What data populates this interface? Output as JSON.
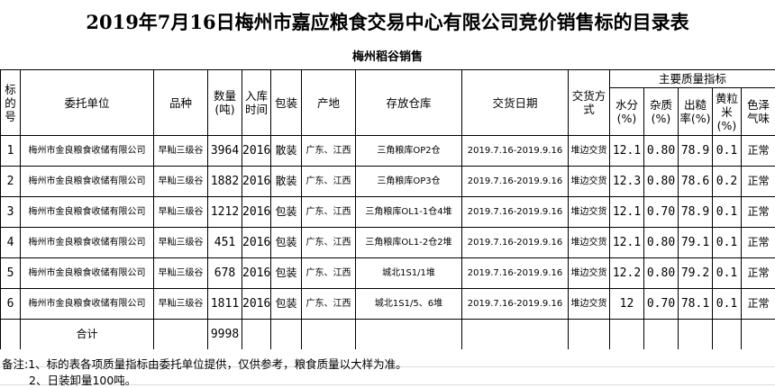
{
  "title": "2019年7月16日梅州市嘉应粮食交易中心有限公司竞价销售标的目录表",
  "subtitle": "梅州稻谷销售",
  "headers": {
    "no": "标的号",
    "unit": "委托单位",
    "variety": "品种",
    "qty": "数量(吨)",
    "year": "入库时间",
    "pack": "包装",
    "origin": "产地",
    "store": "存放仓库",
    "date": "交货日期",
    "method": "交货方式",
    "quality": "主要质量指标",
    "water": "水分(%)",
    "impurity": "杂质(%)",
    "yield": "出糙率(%)",
    "yellow": "黄粒米(%)",
    "color": "色泽气味"
  },
  "rows": [
    {
      "no": "1",
      "unit": "梅州市金良粮食收储有限公司",
      "variety": "早籼三级谷",
      "qty": "3964",
      "year": "2016",
      "pack": "散装",
      "origin": "广东、江西",
      "store": "三角粮库OP2仓",
      "date": "2019.7.16-2019.9.16",
      "method": "堆边交货",
      "water": "12.1",
      "impurity": "0.80",
      "yield": "78.9",
      "yellow": "0.1",
      "color": "正常"
    },
    {
      "no": "2",
      "unit": "梅州市金良粮食收储有限公司",
      "variety": "早籼三级谷",
      "qty": "1882",
      "year": "2016",
      "pack": "散装",
      "origin": "广东、江西",
      "store": "三角粮库OP3仓",
      "date": "2019.7.16-2019.9.16",
      "method": "堆边交货",
      "water": "12.3",
      "impurity": "0.80",
      "yield": "78.6",
      "yellow": "0.2",
      "color": "正常"
    },
    {
      "no": "3",
      "unit": "梅州市金良粮食收储有限公司",
      "variety": "早籼三级谷",
      "qty": "1212",
      "year": "2016",
      "pack": "包装",
      "origin": "广东、江西",
      "store": "三角粮库OL1-1仓4堆",
      "date": "2019.7.16-2019.9.16",
      "method": "堆边交货",
      "water": "12.1",
      "impurity": "0.70",
      "yield": "78.9",
      "yellow": "0.1",
      "color": "正常"
    },
    {
      "no": "4",
      "unit": "梅州市金良粮食收储有限公司",
      "variety": "早籼三级谷",
      "qty": "451",
      "year": "2016",
      "pack": "包装",
      "origin": "广东、江西",
      "store": "三角粮库OL1-2仓2堆",
      "date": "2019.7.16-2019.9.16",
      "method": "堆边交货",
      "water": "12.1",
      "impurity": "0.80",
      "yield": "79.1",
      "yellow": "0.1",
      "color": "正常"
    },
    {
      "no": "5",
      "unit": "梅州市金良粮食收储有限公司",
      "variety": "早籼三级谷",
      "qty": "678",
      "year": "2016",
      "pack": "包装",
      "origin": "广东、江西",
      "store": "城北1S1/1堆",
      "date": "2019.7.16-2019.9.16",
      "method": "堆边交货",
      "water": "12.2",
      "impurity": "0.80",
      "yield": "79.2",
      "yellow": "0.1",
      "color": "正常"
    },
    {
      "no": "6",
      "unit": "梅州市金良粮食收储有限公司",
      "variety": "早籼三级谷",
      "qty": "1811",
      "year": "2016",
      "pack": "包装",
      "origin": "广东、江西",
      "store": "城北1S1/5、6堆",
      "date": "2019.7.16-2019.9.16",
      "method": "堆边交货",
      "water": "12",
      "impurity": "0.70",
      "yield": "78.1",
      "yellow": "0.1",
      "color": "正常"
    }
  ],
  "total": {
    "label": "合计",
    "qty": "9998"
  },
  "notes": [
    "备注:1、标的表各项质量指标由委托单位提供，仅供参考，粮食质量以大样为准。",
    "2、日装卸量100吨。"
  ]
}
